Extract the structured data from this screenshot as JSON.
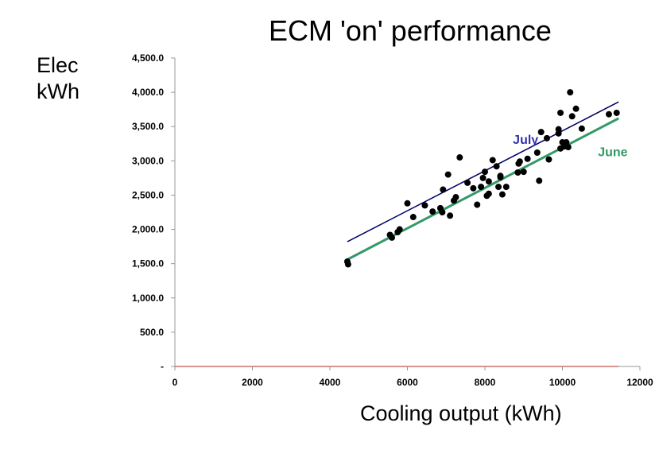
{
  "chart_data": {
    "type": "scatter",
    "title": "ECM 'on' performance",
    "ylabel_lines": [
      "Elec",
      "kWh"
    ],
    "xlabel": "Cooling output (kWh)",
    "xlim": [
      0,
      12000
    ],
    "ylim": [
      0,
      4500
    ],
    "x_ticks": [
      "0",
      "2000",
      "4000",
      "6000",
      "8000",
      "10000",
      "12000"
    ],
    "x_tick_values": [
      0,
      2000,
      4000,
      6000,
      8000,
      10000,
      12000
    ],
    "y_ticks": [
      "-",
      "500.0",
      "1,000.0",
      "1,500.0",
      "2,000.0",
      "2,500.0",
      "3,000.0",
      "3,500.0",
      "4,000.0",
      "4,500.0"
    ],
    "y_tick_values": [
      0,
      500,
      1000,
      1500,
      2000,
      2500,
      3000,
      3500,
      4000,
      4500
    ],
    "grid": false,
    "points": [
      [
        4450,
        1530
      ],
      [
        4470,
        1490
      ],
      [
        5550,
        1920
      ],
      [
        5600,
        1880
      ],
      [
        5750,
        1960
      ],
      [
        5800,
        2000
      ],
      [
        6000,
        2380
      ],
      [
        6150,
        2180
      ],
      [
        6450,
        2350
      ],
      [
        6650,
        2260
      ],
      [
        6850,
        2310
      ],
      [
        6900,
        2250
      ],
      [
        6920,
        2580
      ],
      [
        7050,
        2800
      ],
      [
        7100,
        2200
      ],
      [
        7200,
        2420
      ],
      [
        7250,
        2470
      ],
      [
        7350,
        3050
      ],
      [
        7550,
        2680
      ],
      [
        7700,
        2600
      ],
      [
        7800,
        2360
      ],
      [
        7900,
        2620
      ],
      [
        7950,
        2750
      ],
      [
        8000,
        2840
      ],
      [
        8050,
        2490
      ],
      [
        8100,
        2520
      ],
      [
        8100,
        2700
      ],
      [
        8200,
        3010
      ],
      [
        8300,
        2920
      ],
      [
        8350,
        2620
      ],
      [
        8400,
        2760
      ],
      [
        8400,
        2780
      ],
      [
        8450,
        2510
      ],
      [
        8550,
        2620
      ],
      [
        8850,
        2830
      ],
      [
        8870,
        2960
      ],
      [
        8900,
        2990
      ],
      [
        9000,
        2840
      ],
      [
        9100,
        3030
      ],
      [
        9350,
        3120
      ],
      [
        9400,
        2710
      ],
      [
        9450,
        3420
      ],
      [
        9600,
        3330
      ],
      [
        9650,
        3020
      ],
      [
        9900,
        3400
      ],
      [
        9900,
        3460
      ],
      [
        9950,
        3700
      ],
      [
        9950,
        3180
      ],
      [
        10000,
        3270
      ],
      [
        10050,
        3210
      ],
      [
        10100,
        3270
      ],
      [
        10150,
        3200
      ],
      [
        10200,
        4000
      ],
      [
        10250,
        3650
      ],
      [
        10350,
        3760
      ],
      [
        10500,
        3470
      ],
      [
        11200,
        3680
      ],
      [
        11400,
        3700
      ]
    ],
    "trendlines": [
      {
        "name": "July",
        "x": [
          4450,
          11450
        ],
        "y": [
          1820,
          3860
        ],
        "color": "#000066"
      },
      {
        "name": "June",
        "x": [
          4450,
          11450
        ],
        "y": [
          1560,
          3620
        ],
        "color": "#339966"
      }
    ],
    "series_label_colors": {
      "July": "#3333aa",
      "June": "#339966"
    },
    "marker_color": "#000000",
    "x_axis_color": "#c0504d",
    "axis_color": "#999999"
  }
}
